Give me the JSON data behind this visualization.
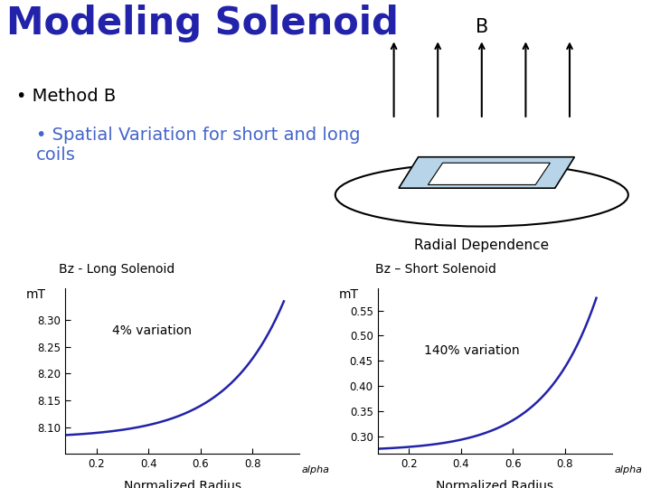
{
  "title": "Modeling Solenoid",
  "title_color": "#2222aa",
  "bullet1": "Method B",
  "bullet2": "Spatial Variation for short and long\ncoils",
  "bullet2_color": "#4466cc",
  "radial_label": "Radial Dependence",
  "b_label": "B",
  "plot1_title": "Bz - Long Solenoid",
  "plot2_title": "Bz – Short Solenoid",
  "plot1_ylabel": "mT",
  "plot2_ylabel": "mT",
  "plot1_xlabel": "Normalized Radius",
  "plot2_xlabel": "Normalized Radius",
  "plot1_annotation": "4% variation",
  "plot2_annotation": "140% variation",
  "plot1_xticks": [
    0.2,
    0.4,
    0.6,
    0.8
  ],
  "plot2_xticks": [
    0.2,
    0.4,
    0.6,
    0.8
  ],
  "plot1_yticks": [
    8.1,
    8.15,
    8.2,
    8.25,
    8.3
  ],
  "plot2_yticks": [
    0.3,
    0.35,
    0.4,
    0.45,
    0.5,
    0.55
  ],
  "plot1_ylim": [
    8.05,
    8.36
  ],
  "plot2_ylim": [
    0.265,
    0.595
  ],
  "plot1_xlim": [
    0.08,
    0.98
  ],
  "plot2_xlim": [
    0.08,
    0.98
  ],
  "curve_color": "#2222aa",
  "alpha_label": "alpha",
  "background_color": "#ffffff"
}
